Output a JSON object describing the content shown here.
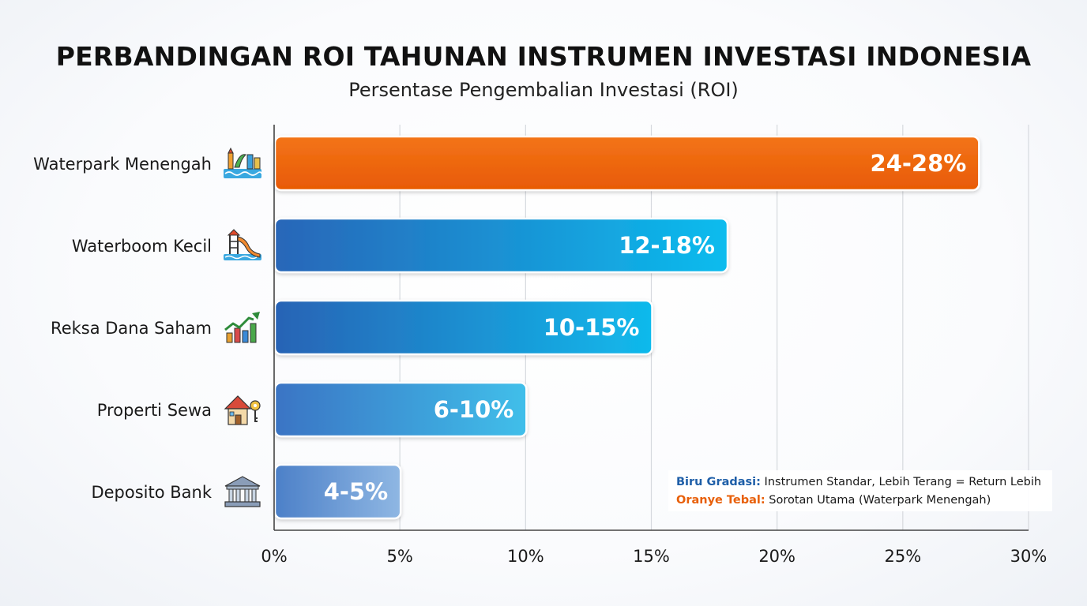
{
  "chart_data": {
    "type": "bar",
    "orientation": "horizontal",
    "title": "PERBANDINGAN ROI TAHUNAN INSTRUMEN INVESTASI INDONESIA",
    "subtitle": "Persentase Pengembalian Investasi (ROI)",
    "categories": [
      "Waterpark Menengah",
      "Waterboom Kecil",
      "Reksa Dana Saham",
      "Properti Sewa",
      "Deposito Bank"
    ],
    "icons": [
      "waterpark-icon",
      "waterslide-icon",
      "stock-chart-icon",
      "house-key-icon",
      "bank-icon"
    ],
    "values": [
      28,
      18,
      15,
      10,
      5
    ],
    "ranges": [
      [
        24,
        28
      ],
      [
        12,
        18
      ],
      [
        10,
        15
      ],
      [
        6,
        10
      ],
      [
        4,
        5
      ]
    ],
    "data_labels": [
      "24-28%",
      "12-18%",
      "10-15%",
      "6-10%",
      "4-5%"
    ],
    "highlight": [
      true,
      false,
      false,
      false,
      false
    ],
    "xlim": [
      0,
      30
    ],
    "xticks": [
      0,
      5,
      10,
      15,
      20,
      25,
      30
    ],
    "xtick_labels": [
      "0%",
      "5%",
      "10%",
      "15%",
      "20%",
      "25%",
      "30%"
    ],
    "grid": "vertical",
    "legend_position": "bottom-right",
    "colors": {
      "highlight": "#f06410",
      "standard_start": "#2a6fc2",
      "standard_end": "#12b8ee"
    },
    "legend": {
      "items": [
        {
          "key": "Biru Gradasi:",
          "text": " Instrumen Standar, Lebih Terang = Return Lebih"
        },
        {
          "key": "Oranye Tebal:",
          "text": " Sorotan Utama (Waterpark Menengah)"
        }
      ]
    }
  }
}
